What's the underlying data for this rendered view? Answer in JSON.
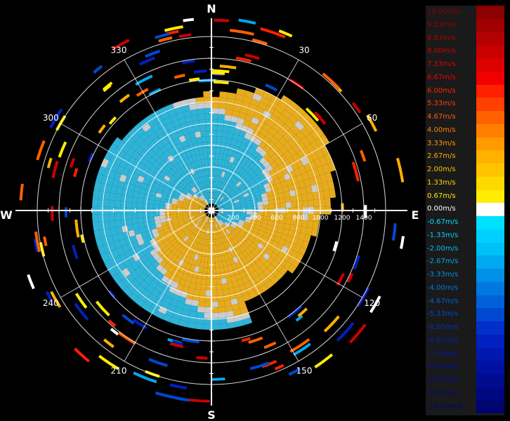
{
  "chart_data": {
    "type": "heatmap",
    "title": "",
    "cardinal_labels": [
      {
        "id": "n",
        "text": "N",
        "bearing": 0
      },
      {
        "id": "e",
        "text": "E",
        "bearing": 90
      },
      {
        "id": "s",
        "text": "S",
        "bearing": 180
      },
      {
        "id": "w",
        "text": "W",
        "bearing": 270
      }
    ],
    "bearing_labels": [
      "30",
      "60",
      "120",
      "150",
      "210",
      "240",
      "300",
      "330"
    ],
    "bearing_values": [
      30,
      60,
      120,
      150,
      210,
      240,
      300,
      330
    ],
    "range_labels": [
      "200",
      "400",
      "600",
      "800",
      "1000",
      "1200",
      "1400"
    ],
    "range_values": [
      200,
      400,
      600,
      800,
      1000,
      1200,
      1400
    ],
    "range_max": 1600,
    "legend": {
      "labels": [
        "10.00m/s",
        "9.33m/s",
        "8.67m/s",
        "8.00m/s",
        "7.33m/s",
        "6.67m/s",
        "6.00m/s",
        "5.33m/s",
        "4.67m/s",
        "4.00m/s",
        "3.33m/s",
        "2.67m/s",
        "2.00m/s",
        "1.33m/s",
        "0.67m/s",
        "0.00m/s",
        "-0.67m/s",
        "-1.33m/s",
        "-2.00m/s",
        "-2.67m/s",
        "-3.33m/s",
        "-4.00m/s",
        "-4.67m/s",
        "-5.33m/s",
        "-6.00m/s",
        "-6.67m/s",
        "-7.33m/s",
        "-8.00m/s",
        "-8.67m/s",
        "-9.33m/s",
        "-10.00m/s"
      ],
      "colors": [
        "#8b0000",
        "#a00000",
        "#b40000",
        "#c80000",
        "#dc0000",
        "#f00000",
        "#ff2000",
        "#ff4000",
        "#ff6000",
        "#ff8000",
        "#ff9a00",
        "#ffb000",
        "#ffc400",
        "#ffd800",
        "#ffec00",
        "#ffffff",
        "#00e0ff",
        "#00d0ff",
        "#00c0f8",
        "#00a8f0",
        "#0090e8",
        "#0078e0",
        "#0060d8",
        "#0048d0",
        "#0030c8",
        "#0020c0",
        "#0018b0",
        "#0010a0",
        "#000c90",
        "#000880",
        "#000470"
      ]
    },
    "colors": {
      "positive": "#e6ac1e",
      "negative": "#2fb4d8",
      "zero": "#cccccc"
    }
  }
}
